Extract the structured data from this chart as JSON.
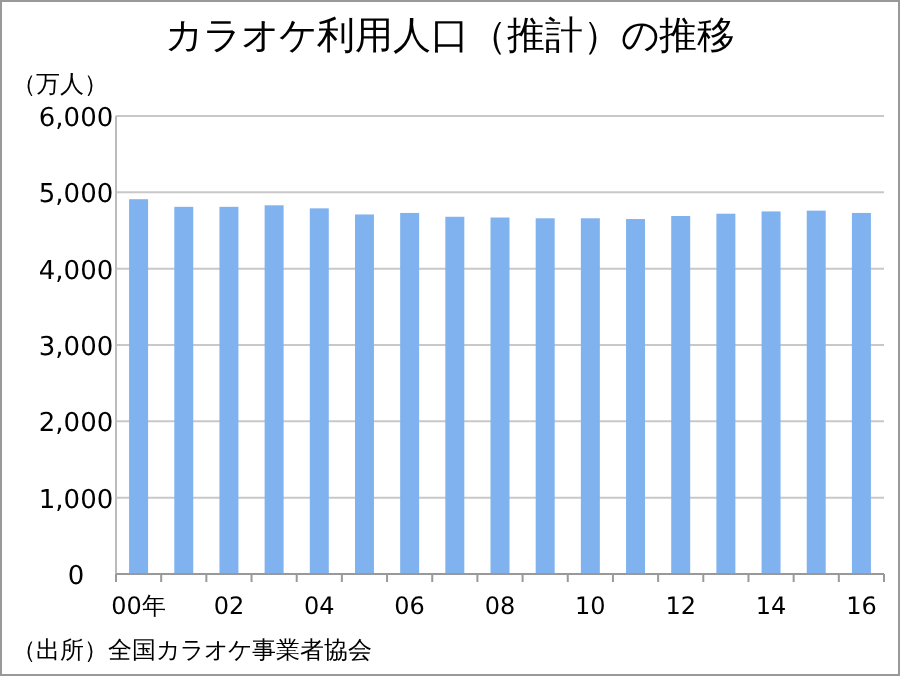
{
  "chart_data": {
    "type": "bar",
    "title": "カラオケ利用人口（推計）の推移",
    "ylabel": "（万人）",
    "categories": [
      "00年",
      null,
      "02",
      null,
      "04",
      null,
      "06",
      null,
      "08",
      null,
      "10",
      null,
      "12",
      null,
      "14",
      null,
      "16"
    ],
    "series": [
      {
        "color": "#7fb2ee",
        "values": [
          4910,
          4810,
          4810,
          4830,
          4790,
          4710,
          4730,
          4680,
          4670,
          4660,
          4660,
          4650,
          4690,
          4720,
          4750,
          4760,
          4730
        ]
      }
    ],
    "ylim": [
      0,
      6000
    ],
    "yticks": [
      {
        "value": 0,
        "label": "0"
      },
      {
        "value": 1000,
        "label": "1,000"
      },
      {
        "value": 2000,
        "label": "2,000"
      },
      {
        "value": 3000,
        "label": "3,000"
      },
      {
        "value": 4000,
        "label": "4,000"
      },
      {
        "value": 5000,
        "label": "5,000"
      },
      {
        "value": 6000,
        "label": "6,000"
      }
    ],
    "grid": "y",
    "annotations": [
      "（出所）全国カラオケ事業者協会"
    ]
  }
}
